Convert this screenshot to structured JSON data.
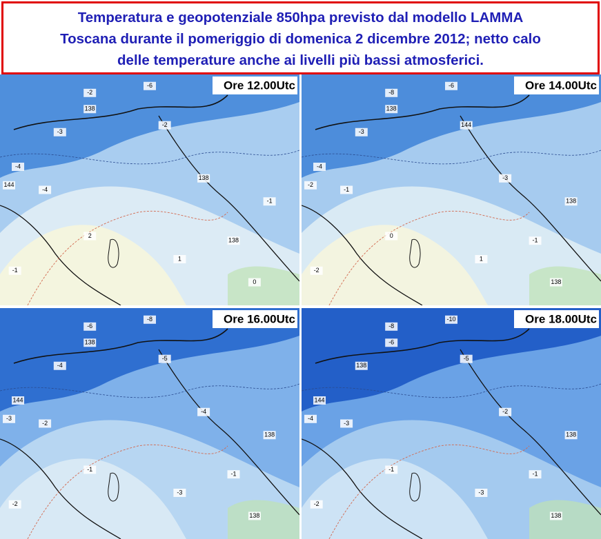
{
  "header": {
    "title_lines": [
      "Temperatura e geopotenziale 850hpa previsto dal modello LAMMA",
      "Toscana durante il pomeriggio di domenica 2 dicembre 2012; netto calo",
      "delle temperature anche ai livelli più bassi atmosferici."
    ]
  },
  "panels": [
    {
      "label": "Ore 12.00Utc",
      "contour_labels": [
        "-6",
        "-2",
        "138",
        "-3",
        "-4",
        "-2",
        "144",
        "-4",
        "-1",
        "138",
        "2",
        "1",
        "0",
        "-1",
        "138"
      ]
    },
    {
      "label": "Ore 14.00Utc",
      "contour_labels": [
        "-6",
        "-8",
        "138",
        "-3",
        "-4",
        "144",
        "-2",
        "-1",
        "138",
        "-3",
        "0",
        "1",
        "138",
        "-2",
        "-1"
      ]
    },
    {
      "label": "Ore 16.00Utc",
      "contour_labels": [
        "-8",
        "-6",
        "138",
        "-4",
        "144",
        "-5",
        "-3",
        "-2",
        "138",
        "-4",
        "-1",
        "-3",
        "138",
        "-2",
        "-1"
      ]
    },
    {
      "label": "Ore 18.00Utc",
      "contour_labels": [
        "-10",
        "-8",
        "-6",
        "138",
        "144",
        "-5",
        "-4",
        "-3",
        "138",
        "-2",
        "-1",
        "-3",
        "138",
        "-2",
        "-1"
      ]
    }
  ]
}
